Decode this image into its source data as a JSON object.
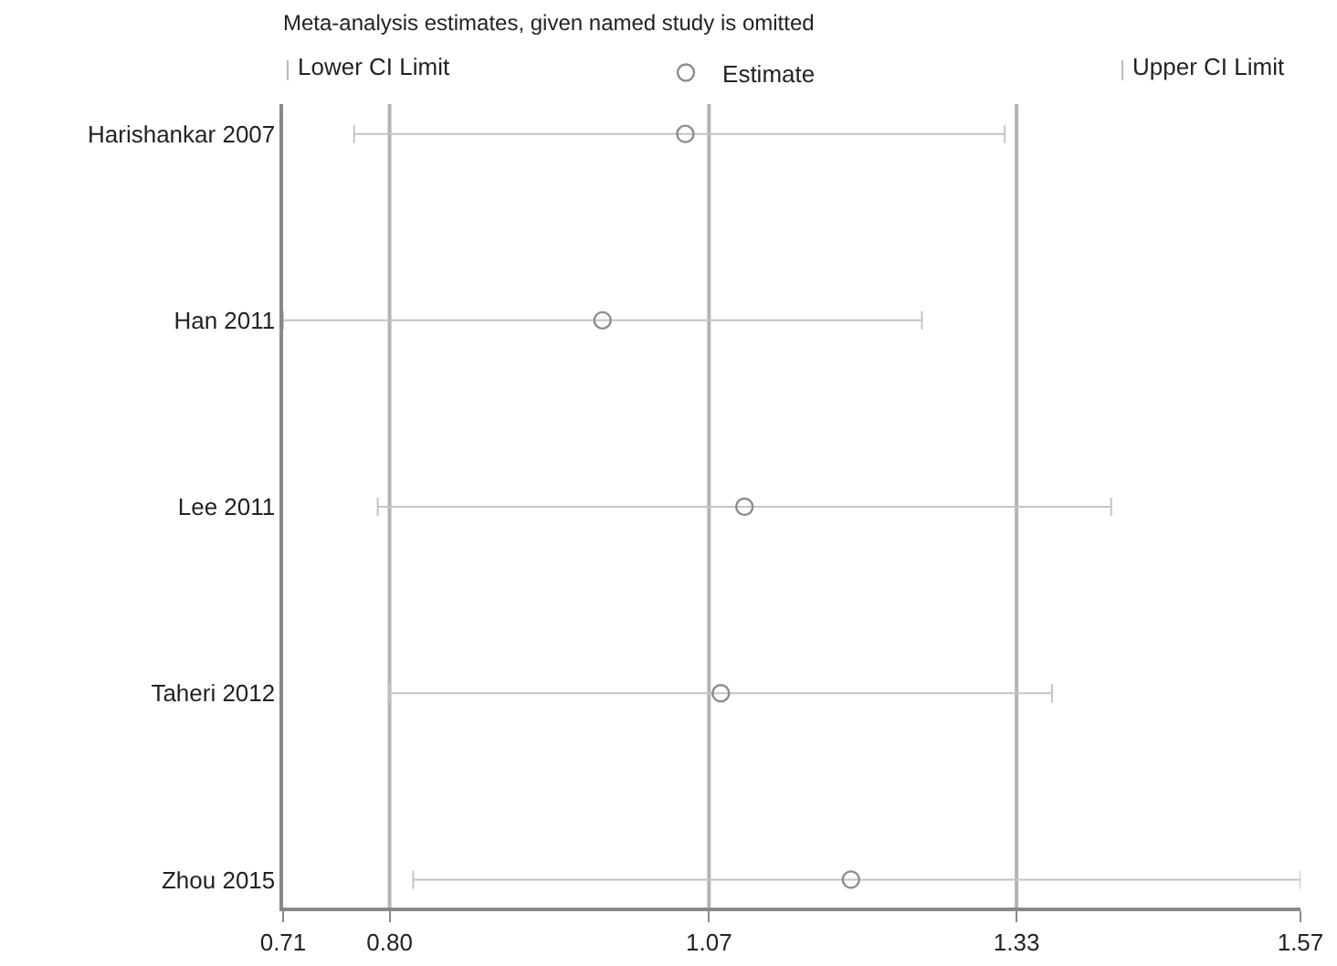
{
  "chart_data": {
    "type": "scatter",
    "orientation": "horizontal",
    "title": "Meta-analysis estimates, given named study is omitted",
    "categories": [
      "Harishankar 2007",
      "Han 2011",
      "Lee 2011",
      "Taheri 2012",
      "Zhou 2015"
    ],
    "series": [
      {
        "name": "Estimate",
        "color": "#8c8c8c",
        "marker": "circle",
        "values": [
          1.05,
          0.98,
          1.1,
          1.08,
          1.19
        ],
        "errors": [
          [
            0.77,
            1.32
          ],
          [
            0.71,
            1.25
          ],
          [
            0.79,
            1.41
          ],
          [
            0.8,
            1.36
          ],
          [
            0.82,
            1.57
          ]
        ]
      }
    ],
    "annotations": [
      "Lower CI Limit",
      "Upper CI Limit"
    ],
    "xlim": [
      0.71,
      1.57
    ],
    "xticks": [
      0.71,
      {
        "value": 0.8,
        "label": "0.80"
      },
      1.07,
      1.33,
      1.57
    ],
    "ref_lines": [
      {
        "axis": "x",
        "value": 0.8,
        "color": "#b4b4b4"
      },
      {
        "axis": "x",
        "value": 1.07,
        "color": "#b4b4b4"
      },
      {
        "axis": "x",
        "value": 1.33,
        "color": "#b4b4b4"
      }
    ],
    "legend": "top"
  }
}
